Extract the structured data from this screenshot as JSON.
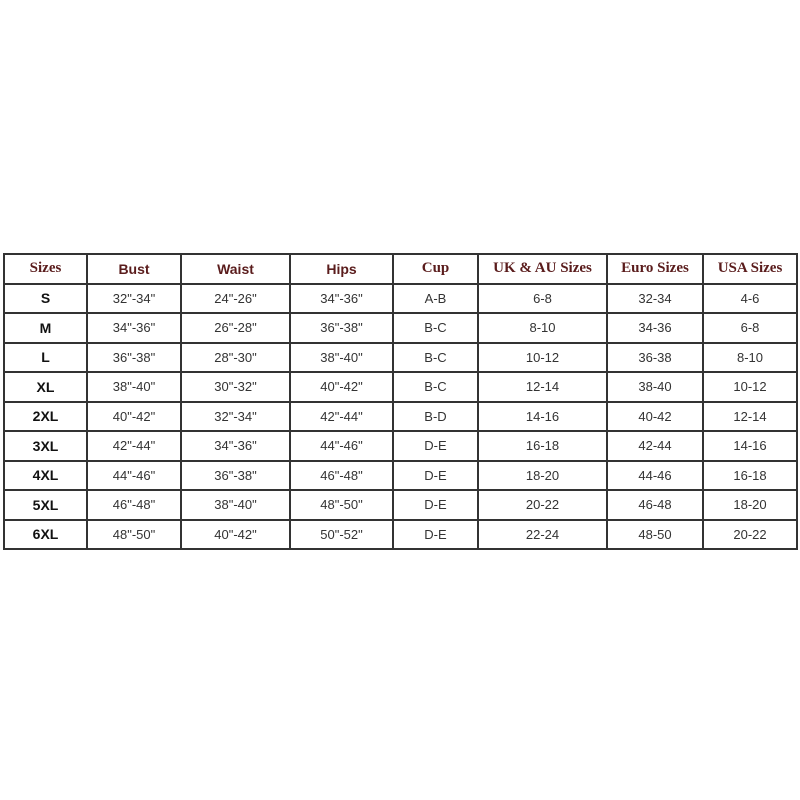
{
  "headers": [
    "Sizes",
    "Bust",
    "Waist",
    "Hips",
    "Cup",
    "UK & AU Sizes",
    "Euro Sizes",
    "USA Sizes"
  ],
  "rows": [
    [
      "S",
      "32\"-34\"",
      "24\"-26\"",
      "34\"-36\"",
      "A-B",
      "6-8",
      "32-34",
      "4-6"
    ],
    [
      "M",
      "34\"-36\"",
      "26\"-28\"",
      "36\"-38\"",
      "B-C",
      "8-10",
      "34-36",
      "6-8"
    ],
    [
      "L",
      "36\"-38\"",
      "28\"-30\"",
      "38\"-40\"",
      "B-C",
      "10-12",
      "36-38",
      "8-10"
    ],
    [
      "XL",
      "38\"-40\"",
      "30\"-32\"",
      "40\"-42\"",
      "B-C",
      "12-14",
      "38-40",
      "10-12"
    ],
    [
      "2XL",
      "40\"-42\"",
      "32\"-34\"",
      "42\"-44\"",
      "B-D",
      "14-16",
      "40-42",
      "12-14"
    ],
    [
      "3XL",
      "42\"-44\"",
      "34\"-36\"",
      "44\"-46\"",
      "D-E",
      "16-18",
      "42-44",
      "14-16"
    ],
    [
      "4XL",
      "44\"-46\"",
      "36\"-38\"",
      "46\"-48\"",
      "D-E",
      "18-20",
      "44-46",
      "16-18"
    ],
    [
      "5XL",
      "46\"-48\"",
      "38\"-40\"",
      "48\"-50\"",
      "D-E",
      "20-22",
      "46-48",
      "18-20"
    ],
    [
      "6XL",
      "48\"-50\"",
      "40\"-42\"",
      "50\"-52\"",
      "D-E",
      "22-24",
      "48-50",
      "20-22"
    ]
  ],
  "colors": {
    "header_text": "#5a1c1c",
    "border": "#333333"
  }
}
